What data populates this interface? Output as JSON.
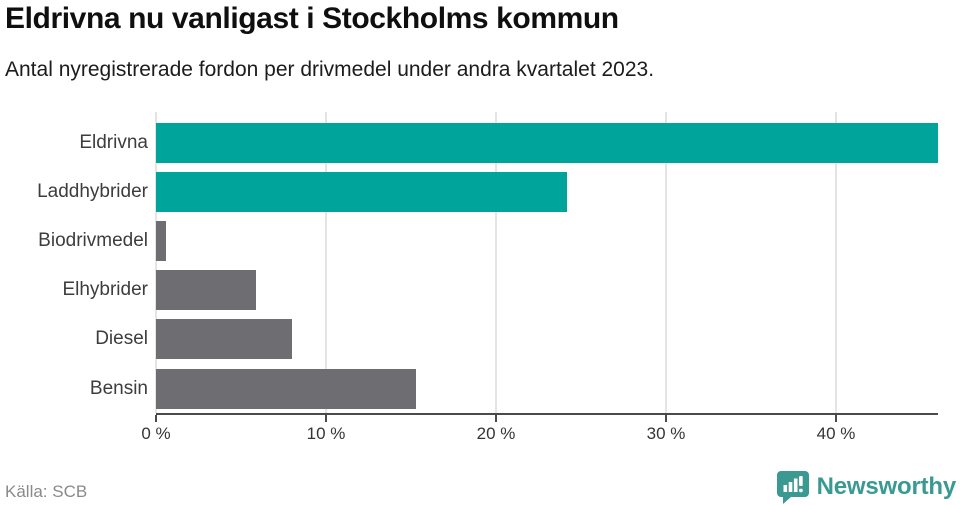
{
  "header": {
    "title": "Eldrivna nu vanligast i Stockholms kommun",
    "subtitle": "Antal nyregistrerade fordon per drivmedel under andra kvartalet 2023."
  },
  "chart_data": {
    "type": "bar",
    "orientation": "horizontal",
    "title": "Eldrivna nu vanligast i Stockholms kommun",
    "subtitle": "Antal nyregistrerade fordon per drivmedel under andra kvartalet 2023.",
    "categories": [
      "Eldrivna",
      "Laddhybrider",
      "Biodrivmedel",
      "Elhybrider",
      "Diesel",
      "Bensin"
    ],
    "values": [
      46.0,
      24.2,
      0.6,
      5.9,
      8.0,
      15.3
    ],
    "unit": "%",
    "xlabel": "",
    "ylabel": "",
    "xlim": [
      0,
      46
    ],
    "x_ticks": [
      {
        "value": 0,
        "label": "0 %"
      },
      {
        "value": 10,
        "label": "10 %"
      },
      {
        "value": 20,
        "label": "20 %"
      },
      {
        "value": 30,
        "label": "30 %"
      },
      {
        "value": 40,
        "label": "40 %"
      }
    ],
    "grid": true,
    "legend": false,
    "bar_colors": [
      "#00a49b",
      "#00a49b",
      "#6e6d72",
      "#6e6d72",
      "#6e6d72",
      "#6e6d72"
    ]
  },
  "colors": {
    "accent_teal": "#00a49b",
    "bar_gray": "#6e6d72",
    "gridline": "#e4e4e4",
    "axis": "#4a4a4a",
    "logo_teal": "#3a9a92"
  },
  "footer": {
    "source": "Källa: SCB",
    "brand": "Newsworthy",
    "brand_icon": "newsworthy-chart-bubble-icon"
  }
}
